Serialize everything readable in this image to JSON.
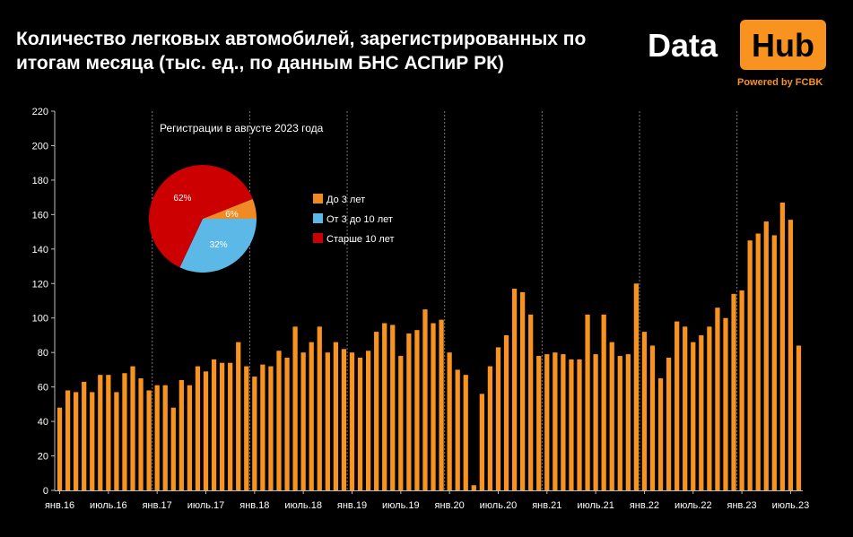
{
  "title": "Количество легковых автомобилей, зарегистрированных по итогам месяца (тыс. ед., по данным БНС АСПиР РК)",
  "logo": {
    "text_data": "Data",
    "text_hub": "Hub",
    "powered": "Powered by FCBK"
  },
  "colors": {
    "background": "#000000",
    "bar": "#f7931e",
    "pie_under3": "#f08a24",
    "pie_3to10": "#5cb8e6",
    "pie_over10": "#cc0000"
  },
  "chart_data": [
    {
      "type": "bar",
      "title": "",
      "xlabel": "",
      "ylabel": "",
      "ylim": [
        0,
        220
      ],
      "yticks": [
        0,
        20,
        40,
        60,
        80,
        100,
        120,
        140,
        160,
        180,
        200,
        220
      ],
      "grid": false,
      "x_tick_labels": [
        {
          "index": 0,
          "label": "янв.16"
        },
        {
          "index": 6,
          "label": "июль.16"
        },
        {
          "index": 12,
          "label": "янв.17"
        },
        {
          "index": 18,
          "label": "июль.17"
        },
        {
          "index": 24,
          "label": "янв.18"
        },
        {
          "index": 30,
          "label": "июль.18"
        },
        {
          "index": 36,
          "label": "янв.19"
        },
        {
          "index": 42,
          "label": "июль.19"
        },
        {
          "index": 48,
          "label": "янв.20"
        },
        {
          "index": 54,
          "label": "июль.20"
        },
        {
          "index": 60,
          "label": "янв.21"
        },
        {
          "index": 66,
          "label": "июль.21"
        },
        {
          "index": 72,
          "label": "янв.22"
        },
        {
          "index": 78,
          "label": "июль.22"
        },
        {
          "index": 84,
          "label": "янв.23"
        },
        {
          "index": 90,
          "label": "июль.23"
        }
      ],
      "year_separators": [
        12,
        24,
        36,
        48,
        60,
        72,
        84
      ],
      "values": [
        48,
        58,
        57,
        63,
        57,
        67,
        67,
        57,
        68,
        72,
        65,
        58,
        61,
        61,
        48,
        64,
        61,
        72,
        69,
        76,
        74,
        74,
        86,
        72,
        66,
        73,
        72,
        81,
        77,
        95,
        80,
        86,
        95,
        80,
        86,
        82,
        80,
        77,
        81,
        92,
        97,
        96,
        78,
        91,
        93,
        105,
        97,
        99,
        80,
        70,
        67,
        3,
        56,
        72,
        83,
        90,
        117,
        115,
        102,
        78,
        79,
        80,
        79,
        76,
        76,
        102,
        79,
        102,
        86,
        78,
        79,
        120,
        92,
        84,
        65,
        77,
        98,
        95,
        86,
        90,
        95,
        106,
        100,
        114,
        116,
        145,
        149,
        156,
        148,
        167,
        157,
        84
      ]
    },
    {
      "type": "pie",
      "title": "Регистрации в августе 2023 года",
      "slices": [
        {
          "label": "До 3 лет",
          "value": 6,
          "display": "6%"
        },
        {
          "label": "От 3 до 10 лет",
          "value": 32,
          "display": "32%"
        },
        {
          "label": "Старше 10 лет",
          "value": 62,
          "display": "62%"
        }
      ],
      "legend_position": "right"
    }
  ]
}
